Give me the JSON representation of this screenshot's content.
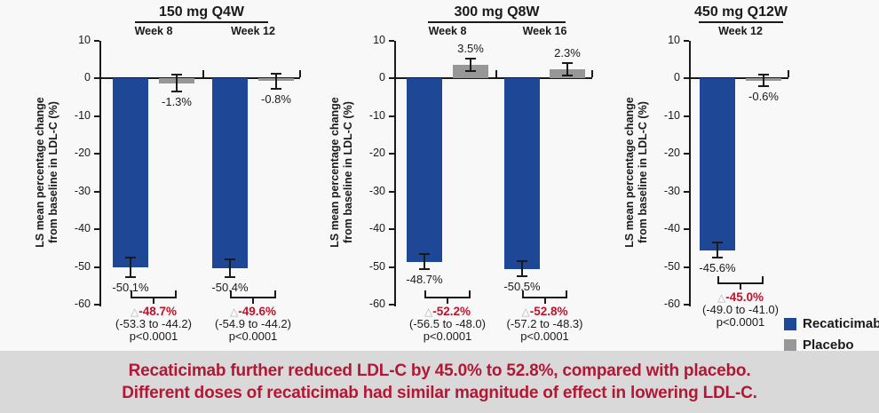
{
  "page": {
    "background": "#f8f8f8"
  },
  "colors": {
    "recaticimab": "#1E4796",
    "placebo": "#979797",
    "delta_red": "#BE1329",
    "triangle_gray": "#b5b5b5",
    "axis_ink": "#1a1a1a",
    "banner_bg": "#D9D9D9",
    "banner_text": "#B21735"
  },
  "y_axis": {
    "label_lines": [
      "LS mean percentage change",
      "from baseline in LDL-C (%)"
    ],
    "ticks": [
      10,
      0,
      -10,
      -20,
      -30,
      -40,
      -50,
      -60
    ],
    "ylim": [
      -60,
      10
    ]
  },
  "legend": {
    "items": [
      {
        "label": "Recaticimab",
        "color_key": "recaticimab"
      },
      {
        "label": "Placebo",
        "color_key": "placebo"
      }
    ]
  },
  "footer": {
    "line1": "Recaticimab further reduced LDL-C by 45.0% to 52.8%, compared with placebo.",
    "line2": "Different doses of recaticimab had similar magnitude of effect in lowering LDL-C."
  },
  "chart_data": [
    {
      "type": "bar",
      "title": "150 mg Q4W",
      "ylabel": "LS mean percentage change from baseline in LDL-C (%)",
      "ylim": [
        -60,
        10
      ],
      "grid": false,
      "series_names": [
        "Recaticimab",
        "Placebo"
      ],
      "groups": [
        {
          "week": "Week 8",
          "recaticimab": {
            "value": -50.1,
            "label": "-50.1%",
            "err": 2.5
          },
          "placebo": {
            "value": -1.3,
            "label": "-1.3%",
            "err": 2.2
          },
          "comparison": {
            "delta": "-48.7%",
            "ci": "(-53.3 to -44.2)",
            "p": "p<0.0001"
          }
        },
        {
          "week": "Week 12",
          "recaticimab": {
            "value": -50.4,
            "label": "-50.4%",
            "err": 2.3
          },
          "placebo": {
            "value": -0.8,
            "label": "-0.8%",
            "err": 2.0
          },
          "comparison": {
            "delta": "-49.6%",
            "ci": "(-54.9 to -44.2)",
            "p": "p<0.0001"
          }
        }
      ]
    },
    {
      "type": "bar",
      "title": "300 mg Q8W",
      "ylabel": "LS mean percentage change from baseline in LDL-C (%)",
      "ylim": [
        -60,
        10
      ],
      "grid": false,
      "series_names": [
        "Recaticimab",
        "Placebo"
      ],
      "groups": [
        {
          "week": "Week 8",
          "recaticimab": {
            "value": -48.7,
            "label": "-48.7%",
            "err": 2.0
          },
          "placebo": {
            "value": 3.5,
            "label": "3.5%",
            "err": 1.7
          },
          "comparison": {
            "delta": "-52.2%",
            "ci": "(-56.5 to -48.0)",
            "p": "p<0.0001"
          }
        },
        {
          "week": "Week 16",
          "recaticimab": {
            "value": -50.5,
            "label": "-50.5%",
            "err": 2.0
          },
          "placebo": {
            "value": 2.3,
            "label": "2.3%",
            "err": 1.7
          },
          "comparison": {
            "delta": "-52.8%",
            "ci": "(-57.2 to -48.3)",
            "p": "p<0.0001"
          }
        }
      ]
    },
    {
      "type": "bar",
      "title": "450 mg Q12W",
      "ylabel": "LS mean percentage change from baseline in LDL-C (%)",
      "ylim": [
        -60,
        10
      ],
      "grid": false,
      "series_names": [
        "Recaticimab",
        "Placebo"
      ],
      "groups": [
        {
          "week": "Week 12",
          "recaticimab": {
            "value": -45.6,
            "label": "-45.6%",
            "err": 2.0
          },
          "placebo": {
            "value": -0.6,
            "label": "-0.6%",
            "err": 1.6
          },
          "comparison": {
            "delta": "-45.0%",
            "ci": "(-49.0 to -41.0)",
            "p": "p<0.0001"
          }
        }
      ]
    }
  ]
}
